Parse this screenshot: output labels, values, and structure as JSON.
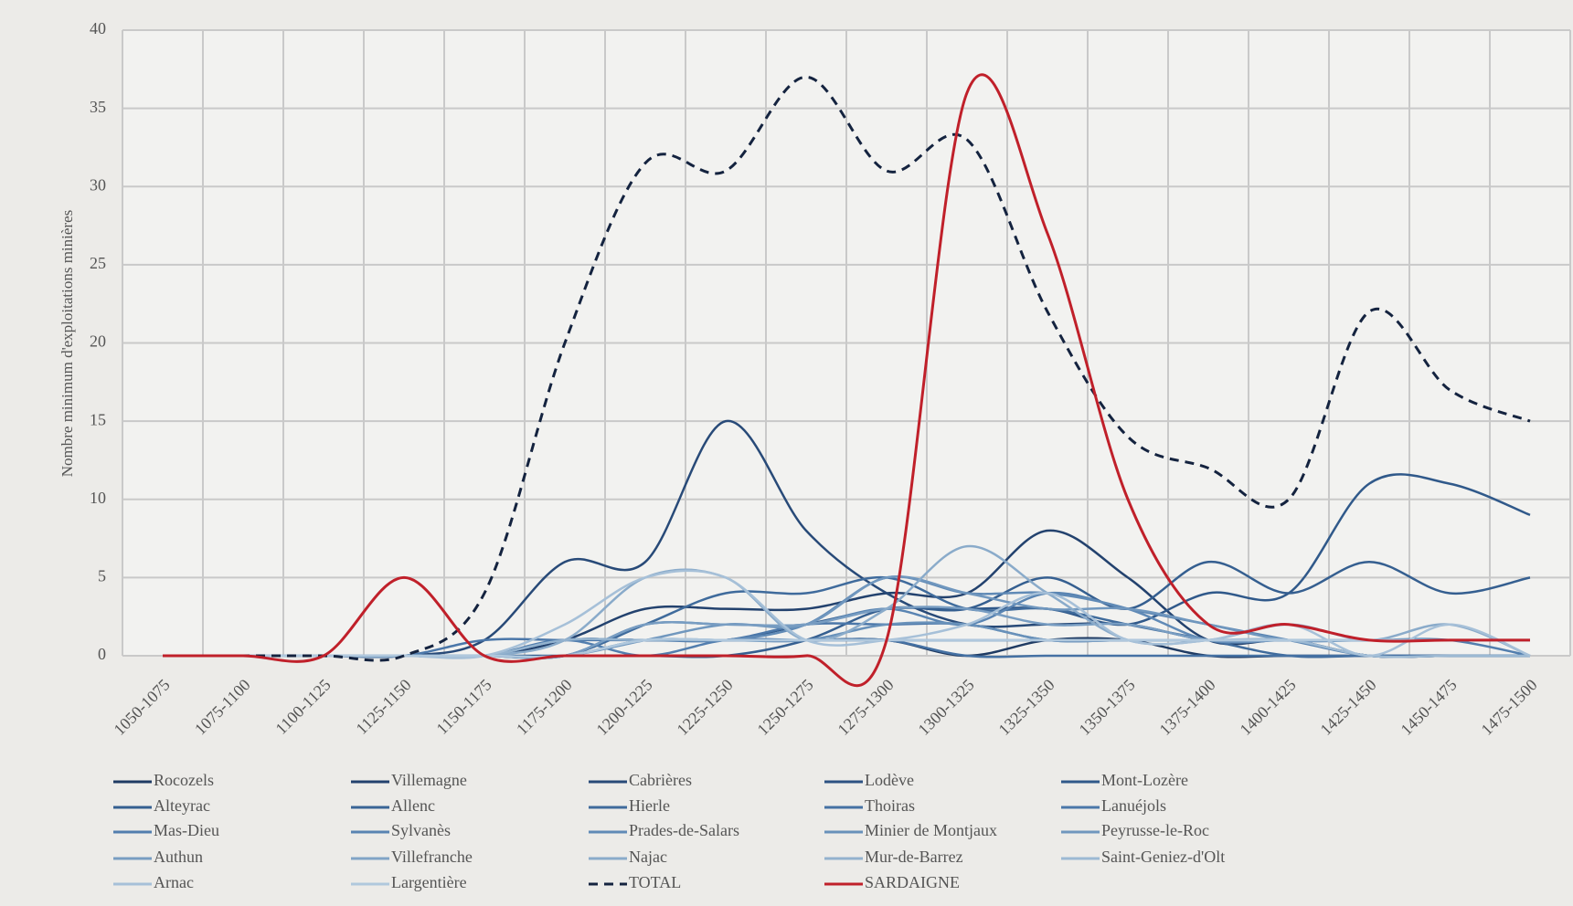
{
  "chart_data": {
    "type": "line",
    "y_axis_label": "Nombre minimum d'exploitations minières",
    "categories": [
      "1050-1075",
      "1075-1100",
      "1100-1125",
      "1125-1150",
      "1150-1175",
      "1175-1200",
      "1200-1225",
      "1225-1250",
      "1250-1275",
      "1275-1300",
      "1300-1325",
      "1325-1350",
      "1350-1375",
      "1375-1400",
      "1400-1425",
      "1425-1450",
      "1450-1475",
      "1475-1500"
    ],
    "ylim": [
      0,
      40
    ],
    "yticks": [
      0,
      5,
      10,
      15,
      20,
      25,
      30,
      35,
      40
    ],
    "grid": true,
    "smooth": true,
    "legend": "bottom",
    "series": [
      {
        "name": "Rocozels",
        "color": "#1f3b63",
        "values": [
          0,
          0,
          0,
          0,
          0,
          1,
          1,
          1,
          1,
          1,
          0,
          1,
          1,
          0,
          0,
          0,
          0,
          0
        ]
      },
      {
        "name": "Villemagne",
        "color": "#23426e",
        "values": [
          0,
          0,
          0,
          0,
          0,
          1,
          3,
          3,
          3,
          4,
          4,
          8,
          5,
          1,
          1,
          0,
          0,
          0
        ]
      },
      {
        "name": "Cabrières",
        "color": "#284a78",
        "values": [
          0,
          0,
          0,
          0,
          1,
          6,
          6,
          15,
          8,
          4,
          2,
          2,
          2,
          1,
          1,
          0,
          0,
          0
        ]
      },
      {
        "name": "Lodève",
        "color": "#2c5282",
        "values": [
          0,
          0,
          0,
          0,
          0,
          1,
          1,
          1,
          1,
          1,
          1,
          1,
          1,
          1,
          1,
          1,
          1,
          1
        ]
      },
      {
        "name": "Mont-Lozère",
        "color": "#30598a",
        "values": [
          0,
          0,
          0,
          0,
          0,
          0,
          1,
          1,
          2,
          3,
          3,
          3,
          2,
          4,
          4,
          11,
          11,
          9
        ]
      },
      {
        "name": "Alteyrac",
        "color": "#355f90",
        "values": [
          0,
          0,
          0,
          0,
          0,
          0,
          0,
          0,
          1,
          3,
          3,
          5,
          3,
          6,
          4,
          6,
          4,
          5
        ]
      },
      {
        "name": "Allenc",
        "color": "#3a6596",
        "values": [
          0,
          0,
          0,
          0,
          0,
          1,
          1,
          1,
          1,
          1,
          1,
          1,
          1,
          1,
          1,
          1,
          1,
          1
        ]
      },
      {
        "name": "Hierle",
        "color": "#3f6b9c",
        "values": [
          0,
          0,
          0,
          0,
          0,
          0,
          2,
          4,
          4,
          5,
          3,
          3,
          2,
          1,
          0,
          0,
          0,
          0
        ]
      },
      {
        "name": "Thoiras",
        "color": "#4571a3",
        "values": [
          0,
          0,
          0,
          0,
          0,
          1,
          1,
          1,
          1,
          1,
          0,
          0,
          0,
          0,
          0,
          0,
          0,
          0
        ]
      },
      {
        "name": "Lanuéjols",
        "color": "#4b77a9",
        "values": [
          0,
          0,
          0,
          0,
          1,
          1,
          1,
          1,
          2,
          2,
          2,
          1,
          1,
          1,
          1,
          1,
          1,
          1
        ]
      },
      {
        "name": "Mas-Dieu",
        "color": "#527eae",
        "values": [
          0,
          0,
          0,
          0,
          0,
          1,
          0,
          1,
          1,
          1,
          1,
          1,
          1,
          1,
          1,
          1,
          1,
          0
        ]
      },
      {
        "name": "Sylvanès",
        "color": "#5984b2",
        "values": [
          0,
          0,
          0,
          0,
          0,
          0,
          2,
          2,
          2,
          3,
          2,
          4,
          3,
          2,
          1,
          0,
          0,
          0
        ]
      },
      {
        "name": "Prades-de-Salars",
        "color": "#608ab6",
        "values": [
          0,
          0,
          0,
          0,
          0,
          0,
          1,
          1,
          2,
          5,
          4,
          4,
          3,
          1,
          1,
          1,
          1,
          1
        ]
      },
      {
        "name": "Minier de Montjaux",
        "color": "#6891ba",
        "values": [
          0,
          0,
          0,
          0,
          0,
          1,
          1,
          1,
          1,
          2,
          2,
          1,
          1,
          1,
          1,
          1,
          1,
          1
        ]
      },
      {
        "name": "Peyrusse-le-Roc",
        "color": "#7097be",
        "values": [
          0,
          0,
          0,
          0,
          0,
          0,
          1,
          2,
          2,
          5,
          4,
          3,
          3,
          2,
          1,
          1,
          1,
          1
        ]
      },
      {
        "name": "Authun",
        "color": "#789dc2",
        "values": [
          0,
          0,
          0,
          0,
          0,
          0,
          2,
          2,
          2,
          3,
          3,
          2,
          2,
          1,
          1,
          1,
          1,
          1
        ]
      },
      {
        "name": "Villefranche",
        "color": "#81a4c6",
        "values": [
          0,
          0,
          0,
          0,
          0,
          0,
          1,
          1,
          1,
          1,
          1,
          1,
          1,
          1,
          1,
          1,
          1,
          1
        ]
      },
      {
        "name": "Najac",
        "color": "#8aabca",
        "values": [
          0,
          0,
          0,
          0,
          0,
          1,
          5,
          5,
          1,
          3,
          7,
          4,
          1,
          1,
          2,
          1,
          2,
          0
        ]
      },
      {
        "name": "Mur-de-Barrez",
        "color": "#93b2ce",
        "values": [
          0,
          0,
          0,
          0,
          0,
          1,
          1,
          1,
          1,
          1,
          1,
          1,
          1,
          1,
          1,
          1,
          1,
          1
        ]
      },
      {
        "name": "Saint-Geniez-d'Olt",
        "color": "#9cb9d3",
        "values": [
          0,
          0,
          0,
          0,
          0,
          0,
          1,
          1,
          1,
          1,
          1,
          1,
          1,
          1,
          1,
          0,
          0,
          0
        ]
      },
      {
        "name": "Arnac",
        "color": "#a6c0d8",
        "values": [
          0,
          0,
          0,
          0,
          0,
          2,
          5,
          5,
          1,
          1,
          2,
          4,
          1,
          1,
          2,
          0,
          2,
          0
        ]
      },
      {
        "name": "Largentière",
        "color": "#b0c8dd",
        "values": [
          0,
          0,
          0,
          0,
          0,
          0,
          1,
          1,
          1,
          1,
          1,
          1,
          1,
          1,
          1,
          1,
          1,
          1
        ]
      },
      {
        "name": "TOTAL",
        "color": "#14233f",
        "dashed": true,
        "values": [
          0,
          0,
          0,
          0,
          4,
          20,
          31.5,
          31,
          37,
          31,
          33,
          22,
          14,
          12,
          10,
          22,
          17,
          15
        ]
      },
      {
        "name": "SARDAIGNE",
        "color": "#c0202a",
        "values": [
          0,
          0,
          0,
          5,
          0,
          0,
          0,
          0,
          0,
          1,
          36,
          27,
          10,
          2,
          2,
          1,
          1,
          1
        ]
      }
    ]
  }
}
